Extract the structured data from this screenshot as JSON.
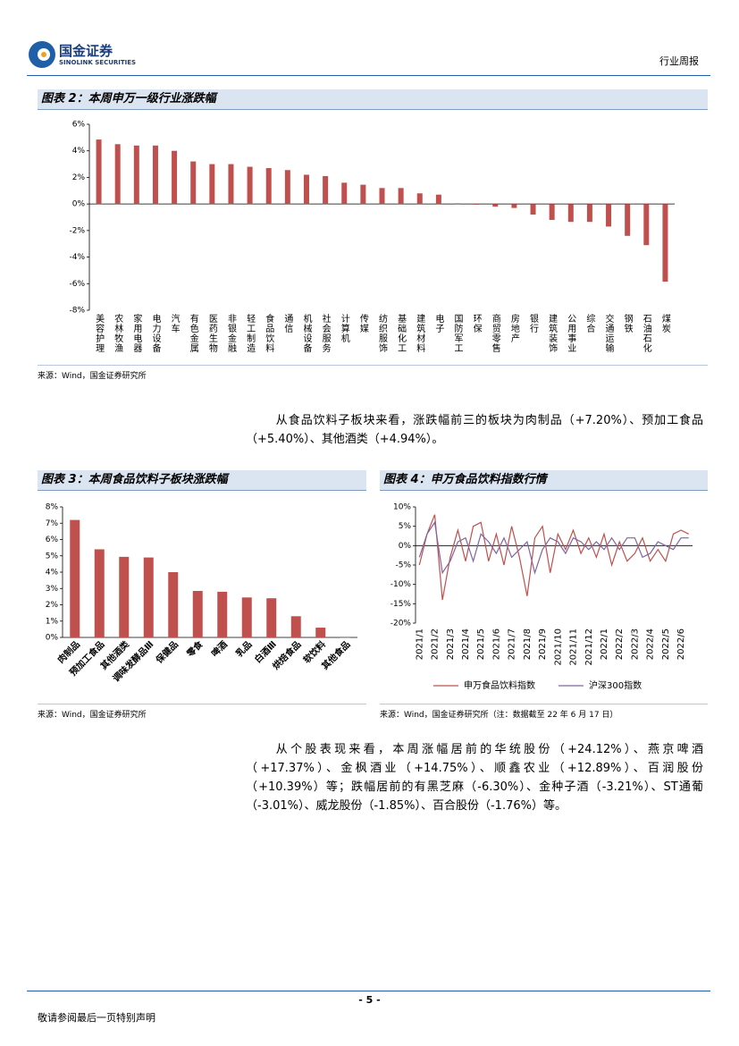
{
  "header": {
    "company": "国金证券",
    "company_en": "SINOLINK SECURITIES",
    "report_type": "行业周报"
  },
  "paragraphs": [
    "从食品饮料子板块来看，涨跌幅前三的板块为肉制品（+7.20%）、预加工食品（+5.40%）、其他酒类（+4.94%）。",
    "从个股表现来看，本周涨幅居前的华统股份（+24.12%）、燕京啤酒（+17.37%）、金枫酒业（+14.75%）、顺鑫农业（+12.89%）、百润股份（+10.39%）等；跌幅居前的有黑芝麻（-6.30%）、金种子酒（-3.21%）、ST通葡（-3.01%）、威龙股份（-1.85%）、百合股份（-1.76%）等。"
  ],
  "footer": {
    "page": "- 5 -",
    "disclaimer": "敬请参阅最后一页特别声明"
  },
  "chart_data": [
    {
      "type": "bar",
      "title": "图表 2：本周申万一级行业涨跌幅",
      "source": "来源：Wind，国金证券研究所",
      "color": "#c0504d",
      "categories": [
        "美容护理",
        "农林牧渔",
        "家用电器",
        "电力设备",
        "汽车",
        "有色金属",
        "医药生物",
        "非银金融",
        "轻工制造",
        "食品饮料",
        "通信",
        "机械设备",
        "社会服务",
        "计算机",
        "传媒",
        "纺织服饰",
        "基础化工",
        "建筑材料",
        "电子",
        "国防军工",
        "环保",
        "商贸零售",
        "房地产",
        "银行",
        "建筑装饰",
        "公用事业",
        "综合",
        "交通运输",
        "钢铁",
        "石油石化",
        "煤炭"
      ],
      "values": [
        4.85,
        4.5,
        4.4,
        4.4,
        4.0,
        3.2,
        3.0,
        3.0,
        2.8,
        2.7,
        2.55,
        2.2,
        2.1,
        1.6,
        1.45,
        1.2,
        1.2,
        0.8,
        0.7,
        0.05,
        -0.05,
        -0.2,
        -0.3,
        -0.8,
        -1.2,
        -1.35,
        -1.35,
        -1.7,
        -2.4,
        -3.1,
        -5.85
      ],
      "ylim": [
        -8,
        6
      ],
      "yticks": [
        {
          "value": -8,
          "label": "-8%"
        },
        {
          "value": -6,
          "label": "-6%"
        },
        {
          "value": -4,
          "label": "-4%"
        },
        {
          "value": -2,
          "label": "-2%"
        },
        {
          "value": 0,
          "label": "0%"
        },
        {
          "value": 2,
          "label": "2%"
        },
        {
          "value": 4,
          "label": "4%"
        },
        {
          "value": 6,
          "label": "6%"
        }
      ],
      "grid": false
    },
    {
      "type": "bar",
      "title": "图表 3：本周食品饮料子板块涨跌幅",
      "source": "来源：Wind，国金证券研究所",
      "color": "#c0504d",
      "categories": [
        "肉制品",
        "预加工食品",
        "其他酒类",
        "调味发酵品Ⅲ",
        "保健品",
        "零食",
        "啤酒",
        "乳品",
        "白酒Ⅲ",
        "烘焙食品",
        "软饮料",
        "其他食品"
      ],
      "values": [
        7.2,
        5.4,
        4.94,
        4.9,
        4.0,
        2.85,
        2.8,
        2.45,
        2.4,
        1.3,
        0.6,
        0.0
      ],
      "ylim": [
        0,
        8
      ],
      "yticks": [
        {
          "value": 0,
          "label": "0%"
        },
        {
          "value": 1,
          "label": "1%"
        },
        {
          "value": 2,
          "label": "2%"
        },
        {
          "value": 3,
          "label": "3%"
        },
        {
          "value": 4,
          "label": "4%"
        },
        {
          "value": 5,
          "label": "5%"
        },
        {
          "value": 6,
          "label": "6%"
        },
        {
          "value": 7,
          "label": "7%"
        },
        {
          "value": 8,
          "label": "8%"
        }
      ],
      "grid": false
    },
    {
      "type": "line",
      "title": "图表 4：申万食品饮料指数行情",
      "source": "来源：Wind，国金证券研究所（注：数据截至 22 年 6 月 17 日）",
      "categories": [
        "2021/1",
        null,
        "2021/2",
        null,
        "2021/3",
        null,
        "2021/4",
        null,
        "2021/5",
        null,
        "2021/6",
        null,
        "2021/7",
        null,
        "2021/8",
        null,
        "2021/9",
        null,
        "2021/10",
        null,
        "2021/11",
        null,
        "2021/12",
        null,
        "2022/1",
        null,
        "2022/2",
        null,
        "2022/3",
        null,
        "2022/4",
        null,
        "2022/5",
        null,
        "2022/6",
        null
      ],
      "series": [
        {
          "name": "申万食品饮料指数",
          "color": "#c0504d",
          "values": [
            -5,
            3,
            8,
            -14,
            -3,
            4,
            -4,
            5,
            6,
            -4,
            3,
            -5,
            5,
            -3,
            -13,
            2,
            5,
            -7,
            3,
            -1,
            4,
            -2,
            2,
            -3,
            3,
            -5,
            1,
            -4,
            -2,
            2,
            -4,
            -1,
            -4,
            3,
            4,
            3
          ]
        },
        {
          "name": "沪深300指数",
          "color": "#8064a2",
          "values": [
            -3,
            3,
            6,
            -7,
            -4,
            1,
            2,
            -4,
            3,
            1,
            -2,
            2,
            -3,
            -1,
            1,
            -7,
            -1,
            2,
            1,
            -2,
            2,
            1,
            -1,
            1,
            -1,
            2,
            -1,
            2,
            2,
            -3,
            -2,
            1,
            0,
            -1,
            2,
            2
          ]
        }
      ],
      "ylim": [
        -20,
        10
      ],
      "yticks": [
        {
          "value": -20,
          "label": "-20%"
        },
        {
          "value": -15,
          "label": "-15%"
        },
        {
          "value": -10,
          "label": "-10%"
        },
        {
          "value": -5,
          "label": "-5%"
        },
        {
          "value": 0,
          "label": "0%"
        },
        {
          "value": 5,
          "label": "5%"
        },
        {
          "value": 10,
          "label": "10%"
        }
      ],
      "grid": false,
      "legend": "bottom"
    }
  ]
}
